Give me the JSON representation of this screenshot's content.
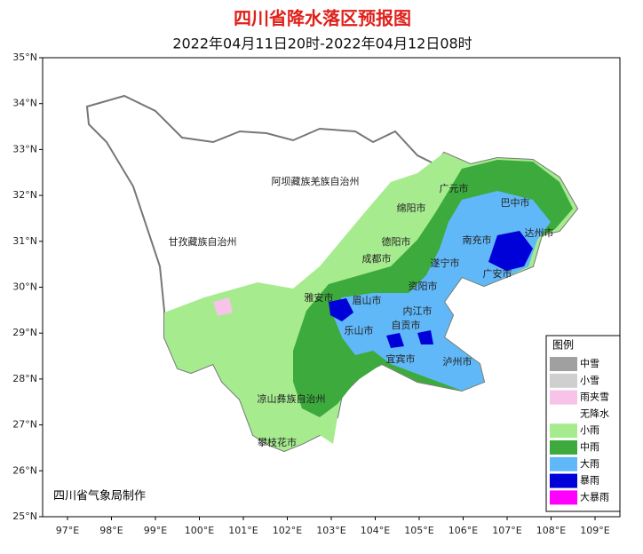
{
  "header": {
    "title": "四川省降水落区预报图",
    "subtitle": "2022年04月11日20时-2022年04月12日08时"
  },
  "axes": {
    "lat_labels": [
      "35°N",
      "34°N",
      "33°N",
      "32°N",
      "31°N",
      "30°N",
      "29°N",
      "28°N",
      "27°N",
      "26°N",
      "25°N"
    ],
    "lon_labels": [
      "97°E",
      "98°E",
      "99°E",
      "100°E",
      "101°E",
      "102°E",
      "103°E",
      "104°E",
      "105°E",
      "106°E",
      "107°E",
      "108°E",
      "109°E"
    ]
  },
  "places": [
    "阿坝藏族羌族自治州",
    "甘孜藏族自治州",
    "广元市",
    "巴中市",
    "绵阳市",
    "德阳市",
    "南充市",
    "达州市",
    "成都市",
    "遂宁市",
    "广安市",
    "雅安市",
    "眉山市",
    "资阳市",
    "内江市",
    "乐山市",
    "自贡市",
    "宜宾市",
    "泸州市",
    "凉山彝族自治州",
    "攀枝花市"
  ],
  "legend": {
    "title": "图例",
    "items": [
      {
        "label": "中雪",
        "color": "#a0a0a0"
      },
      {
        "label": "小雪",
        "color": "#cfcfcf"
      },
      {
        "label": "雨夹雪",
        "color": "#f7c3e8"
      },
      {
        "label": "无降水",
        "color": "#ffffff"
      },
      {
        "label": "小雨",
        "color": "#a6ec8f"
      },
      {
        "label": "中雨",
        "color": "#3caa3c"
      },
      {
        "label": "大雨",
        "color": "#61b8f8"
      },
      {
        "label": "暴雨",
        "color": "#0000d8"
      },
      {
        "label": "大暴雨",
        "color": "#ff00ff"
      }
    ]
  },
  "credit": "四川省气象局制作"
}
